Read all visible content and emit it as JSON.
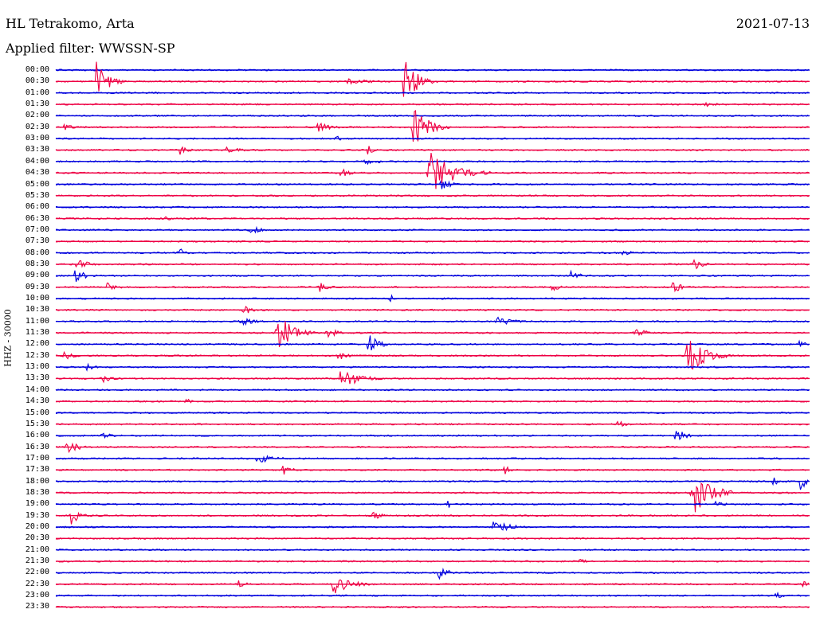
{
  "header": {
    "station": "HL Tetrakomo, Arta",
    "date": "2021-07-13",
    "filter_label": "Applied filter:",
    "filter_value": "WWSSN-SP",
    "channel": "HHZ - 30000"
  },
  "colors": {
    "blue": "#0000dd",
    "red": "#ee0044"
  },
  "chart_data": {
    "type": "line",
    "title": "HL Tetrakomo, Arta",
    "ylabel": "HHZ - 30000",
    "row_labels": [
      "00:00",
      "00:30",
      "01:00",
      "01:30",
      "02:00",
      "02:30",
      "03:00",
      "03:30",
      "04:00",
      "04:30",
      "05:00",
      "05:30",
      "06:00",
      "06:30",
      "07:00",
      "07:30",
      "08:00",
      "08:30",
      "09:00",
      "09:30",
      "10:00",
      "10:30",
      "11:00",
      "11:30",
      "12:00",
      "12:30",
      "13:00",
      "13:30",
      "14:00",
      "14:30",
      "15:00",
      "15:30",
      "16:00",
      "16:30",
      "17:00",
      "17:30",
      "18:00",
      "18:30",
      "19:00",
      "19:30",
      "20:00",
      "20:30",
      "21:00",
      "21:30",
      "22:00",
      "22:30",
      "23:00",
      "23:30"
    ],
    "x_range_minutes": [
      0,
      30
    ],
    "events": [
      {
        "row": 1,
        "minute": 1.6,
        "amp": 28,
        "dur": 1.2
      },
      {
        "row": 1,
        "minute": 13.8,
        "amp": 35,
        "dur": 1.4
      },
      {
        "row": 1,
        "minute": 11.5,
        "amp": 5,
        "dur": 2.5
      },
      {
        "row": 3,
        "minute": 25.8,
        "amp": 5,
        "dur": 1.0
      },
      {
        "row": 5,
        "minute": 0.3,
        "amp": 6,
        "dur": 0.8
      },
      {
        "row": 5,
        "minute": 10.4,
        "amp": 7,
        "dur": 1.5
      },
      {
        "row": 5,
        "minute": 14.2,
        "amp": 30,
        "dur": 1.5
      },
      {
        "row": 6,
        "minute": 11.1,
        "amp": 6,
        "dur": 0.8
      },
      {
        "row": 7,
        "minute": 4.9,
        "amp": 7,
        "dur": 1.0
      },
      {
        "row": 7,
        "minute": 6.8,
        "amp": 4,
        "dur": 1.8
      },
      {
        "row": 7,
        "minute": 12.4,
        "amp": 7,
        "dur": 0.6
      },
      {
        "row": 8,
        "minute": 12.3,
        "amp": 9,
        "dur": 1.0
      },
      {
        "row": 9,
        "minute": 11.3,
        "amp": 7,
        "dur": 1.0
      },
      {
        "row": 9,
        "minute": 14.8,
        "amp": 30,
        "dur": 2.5
      },
      {
        "row": 10,
        "minute": 15.3,
        "amp": 10,
        "dur": 1.0
      },
      {
        "row": 13,
        "minute": 4.2,
        "amp": 10,
        "dur": 0.5
      },
      {
        "row": 14,
        "minute": 7.7,
        "amp": 8,
        "dur": 1.0
      },
      {
        "row": 16,
        "minute": 4.9,
        "amp": 8,
        "dur": 0.6
      },
      {
        "row": 16,
        "minute": 22.5,
        "amp": 5,
        "dur": 1.0
      },
      {
        "row": 17,
        "minute": 0.8,
        "amp": 10,
        "dur": 1.0
      },
      {
        "row": 17,
        "minute": 25.4,
        "amp": 7,
        "dur": 1.0
      },
      {
        "row": 18,
        "minute": 0.7,
        "amp": 10,
        "dur": 1.2
      },
      {
        "row": 18,
        "minute": 20.5,
        "amp": 7,
        "dur": 1.0
      },
      {
        "row": 19,
        "minute": 2.0,
        "amp": 7,
        "dur": 1.0
      },
      {
        "row": 19,
        "minute": 10.5,
        "amp": 7,
        "dur": 1.0
      },
      {
        "row": 19,
        "minute": 19.7,
        "amp": 7,
        "dur": 0.8
      },
      {
        "row": 19,
        "minute": 24.5,
        "amp": 9,
        "dur": 1.0
      },
      {
        "row": 20,
        "minute": 13.3,
        "amp": 8,
        "dur": 0.5
      },
      {
        "row": 21,
        "minute": 7.4,
        "amp": 8,
        "dur": 1.0
      },
      {
        "row": 22,
        "minute": 7.3,
        "amp": 6,
        "dur": 1.5
      },
      {
        "row": 22,
        "minute": 17.5,
        "amp": 6,
        "dur": 2.0
      },
      {
        "row": 23,
        "minute": 8.8,
        "amp": 28,
        "dur": 1.5
      },
      {
        "row": 23,
        "minute": 10.8,
        "amp": 9,
        "dur": 1.0
      },
      {
        "row": 23,
        "minute": 23.0,
        "amp": 10,
        "dur": 1.0
      },
      {
        "row": 24,
        "minute": 12.4,
        "amp": 16,
        "dur": 1.0
      },
      {
        "row": 24,
        "minute": 29.5,
        "amp": 7,
        "dur": 0.8
      },
      {
        "row": 25,
        "minute": 0.3,
        "amp": 7,
        "dur": 1.0
      },
      {
        "row": 25,
        "minute": 11.2,
        "amp": 7,
        "dur": 1.0
      },
      {
        "row": 25,
        "minute": 25.1,
        "amp": 28,
        "dur": 1.8
      },
      {
        "row": 26,
        "minute": 1.2,
        "amp": 7,
        "dur": 0.8
      },
      {
        "row": 27,
        "minute": 1.8,
        "amp": 6,
        "dur": 1.2
      },
      {
        "row": 27,
        "minute": 11.3,
        "amp": 14,
        "dur": 2.0
      },
      {
        "row": 29,
        "minute": 5.1,
        "amp": 7,
        "dur": 0.6
      },
      {
        "row": 31,
        "minute": 22.3,
        "amp": 7,
        "dur": 0.8
      },
      {
        "row": 32,
        "minute": 1.8,
        "amp": 6,
        "dur": 1.0
      },
      {
        "row": 32,
        "minute": 24.6,
        "amp": 12,
        "dur": 1.0
      },
      {
        "row": 33,
        "minute": 0.4,
        "amp": 10,
        "dur": 1.2
      },
      {
        "row": 34,
        "minute": 7.9,
        "amp": 8,
        "dur": 1.8
      },
      {
        "row": 35,
        "minute": 9.0,
        "amp": 8,
        "dur": 1.0
      },
      {
        "row": 35,
        "minute": 17.8,
        "amp": 7,
        "dur": 0.8
      },
      {
        "row": 36,
        "minute": 29.6,
        "amp": 14,
        "dur": 1.0
      },
      {
        "row": 36,
        "minute": 28.5,
        "amp": 6,
        "dur": 1.0
      },
      {
        "row": 37,
        "minute": 25.3,
        "amp": 35,
        "dur": 1.8
      },
      {
        "row": 38,
        "minute": 15.6,
        "amp": 8,
        "dur": 0.5
      },
      {
        "row": 38,
        "minute": 26.2,
        "amp": 7,
        "dur": 0.8
      },
      {
        "row": 39,
        "minute": 0.6,
        "amp": 12,
        "dur": 1.0
      },
      {
        "row": 39,
        "minute": 12.6,
        "amp": 6,
        "dur": 1.0
      },
      {
        "row": 40,
        "minute": 17.4,
        "amp": 8,
        "dur": 2.0
      },
      {
        "row": 43,
        "minute": 20.8,
        "amp": 6,
        "dur": 0.6
      },
      {
        "row": 44,
        "minute": 15.2,
        "amp": 10,
        "dur": 1.0
      },
      {
        "row": 45,
        "minute": 7.2,
        "amp": 7,
        "dur": 0.8
      },
      {
        "row": 45,
        "minute": 11.0,
        "amp": 14,
        "dur": 1.8
      },
      {
        "row": 45,
        "minute": 29.7,
        "amp": 6,
        "dur": 0.8
      },
      {
        "row": 46,
        "minute": 28.6,
        "amp": 6,
        "dur": 0.8
      }
    ]
  }
}
